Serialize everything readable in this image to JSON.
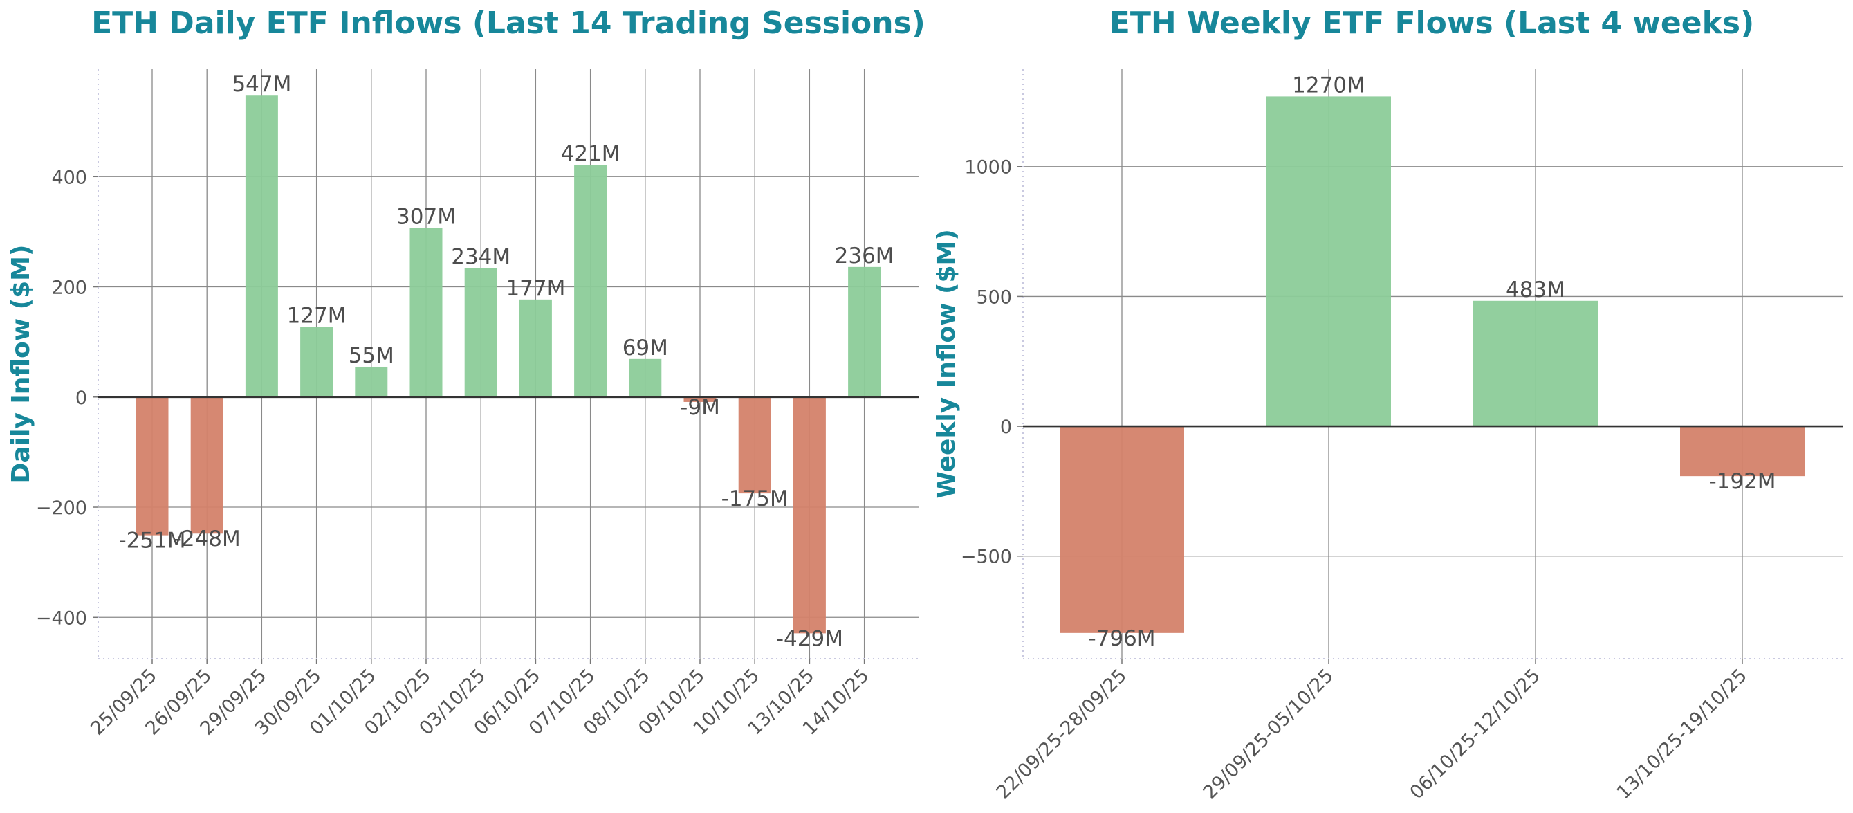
{
  "colors": {
    "positive": "#8ccc99",
    "negative": "#d4826a",
    "title": "#17879a"
  },
  "chart_data": [
    {
      "type": "bar",
      "title": "ETH Daily ETF Inflows (Last 14 Trading Sessions)",
      "xlabel": "",
      "ylabel": "Daily Inflow ($M)",
      "ylim": [
        -475,
        595
      ],
      "yticks": [
        -400,
        -200,
        0,
        200,
        400
      ],
      "ytick_labels": [
        "−400",
        "−200",
        "0",
        "200",
        "400"
      ],
      "categories": [
        "25/09/25",
        "26/09/25",
        "29/09/25",
        "30/09/25",
        "01/10/25",
        "02/10/25",
        "03/10/25",
        "06/10/25",
        "07/10/25",
        "08/10/25",
        "09/10/25",
        "10/10/25",
        "13/10/25",
        "14/10/25"
      ],
      "values": [
        -251,
        -248,
        547,
        127,
        55,
        307,
        234,
        177,
        421,
        69,
        -9,
        -175,
        -429,
        236
      ],
      "data_labels": [
        "-251M",
        "-248M",
        "547M",
        "127M",
        "55M",
        "307M",
        "234M",
        "177M",
        "421M",
        "69M",
        "-9M",
        "-175M",
        "-429M",
        "236M"
      ],
      "grid": true
    },
    {
      "type": "bar",
      "title": "ETH Weekly ETF Flows (Last 4 weeks)",
      "xlabel": "",
      "ylabel": "Weekly Inflow ($M)",
      "ylim": [
        -895,
        1375
      ],
      "yticks": [
        -500,
        0,
        500,
        1000
      ],
      "ytick_labels": [
        "−500",
        "0",
        "500",
        "1000"
      ],
      "categories": [
        "22/09/25-28/09/25",
        "29/09/25-05/10/25",
        "06/10/25-12/10/25",
        "13/10/25-19/10/25"
      ],
      "values": [
        -796,
        1270,
        483,
        -192
      ],
      "data_labels": [
        "-796M",
        "1270M",
        "483M",
        "-192M"
      ],
      "grid": true
    }
  ]
}
